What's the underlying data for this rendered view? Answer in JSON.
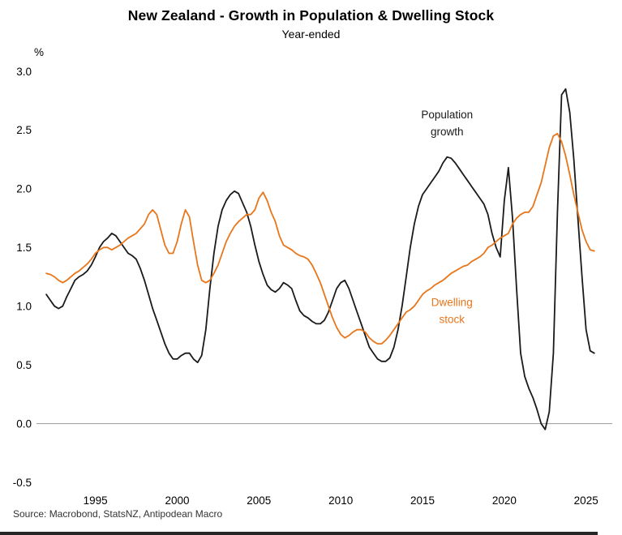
{
  "footer": {
    "source": "Source: Macrobond, StatsNZ, Antipodean Macro"
  },
  "chart_data": {
    "type": "line",
    "title": "New Zealand - Growth in Population & Dwelling Stock",
    "subtitle": "Year-ended",
    "ylabel": "%",
    "xlabel": "",
    "xlim": [
      1991.4,
      2026.6
    ],
    "ylim": [
      -0.5,
      3.0
    ],
    "yticks": [
      3.0,
      2.5,
      2.0,
      1.5,
      1.0,
      0.5,
      0.0,
      -0.5
    ],
    "xticks": [
      1995,
      2000,
      2005,
      2010,
      2015,
      2020,
      2025
    ],
    "grid": false,
    "zero_line": true,
    "zero_line_color": "#999999",
    "legend_position": "inline-annotations",
    "series": [
      {
        "id": "population-growth",
        "name": "Population growth",
        "color": "#1a1a1a",
        "x_start": 1992.0,
        "x_step": 0.25,
        "values": [
          1.1,
          1.05,
          1.0,
          0.98,
          1.0,
          1.08,
          1.15,
          1.22,
          1.25,
          1.27,
          1.3,
          1.35,
          1.42,
          1.5,
          1.55,
          1.58,
          1.62,
          1.6,
          1.55,
          1.5,
          1.45,
          1.43,
          1.4,
          1.32,
          1.22,
          1.1,
          0.98,
          0.88,
          0.78,
          0.68,
          0.6,
          0.55,
          0.55,
          0.58,
          0.6,
          0.6,
          0.55,
          0.52,
          0.58,
          0.8,
          1.15,
          1.45,
          1.68,
          1.82,
          1.9,
          1.95,
          1.98,
          1.96,
          1.88,
          1.8,
          1.68,
          1.52,
          1.38,
          1.27,
          1.18,
          1.14,
          1.12,
          1.15,
          1.2,
          1.18,
          1.15,
          1.05,
          0.96,
          0.92,
          0.9,
          0.87,
          0.85,
          0.85,
          0.88,
          0.95,
          1.05,
          1.15,
          1.2,
          1.22,
          1.15,
          1.05,
          0.95,
          0.85,
          0.75,
          0.65,
          0.6,
          0.55,
          0.53,
          0.53,
          0.56,
          0.65,
          0.8,
          1.0,
          1.25,
          1.5,
          1.7,
          1.85,
          1.95,
          2.0,
          2.05,
          2.1,
          2.15,
          2.22,
          2.27,
          2.26,
          2.22,
          2.17,
          2.12,
          2.07,
          2.02,
          1.97,
          1.92,
          1.87,
          1.78,
          1.62,
          1.5,
          1.42,
          1.9,
          2.18,
          1.75,
          1.15,
          0.6,
          0.4,
          0.3,
          0.22,
          0.12,
          0.0,
          -0.05,
          0.1,
          0.6,
          1.8,
          2.8,
          2.85,
          2.65,
          2.25,
          1.75,
          1.25,
          0.8,
          0.62,
          0.6
        ]
      },
      {
        "id": "dwelling-stock",
        "name": "Dwelling stock",
        "color": "#E8761B",
        "x_start": 1992.0,
        "x_step": 0.25,
        "values": [
          1.28,
          1.27,
          1.25,
          1.22,
          1.2,
          1.22,
          1.25,
          1.28,
          1.3,
          1.33,
          1.36,
          1.4,
          1.45,
          1.48,
          1.5,
          1.5,
          1.48,
          1.5,
          1.52,
          1.55,
          1.58,
          1.6,
          1.62,
          1.66,
          1.7,
          1.78,
          1.82,
          1.78,
          1.65,
          1.52,
          1.45,
          1.45,
          1.55,
          1.7,
          1.82,
          1.76,
          1.55,
          1.35,
          1.22,
          1.2,
          1.22,
          1.28,
          1.35,
          1.45,
          1.55,
          1.62,
          1.68,
          1.72,
          1.75,
          1.78,
          1.78,
          1.82,
          1.92,
          1.97,
          1.9,
          1.8,
          1.72,
          1.6,
          1.52,
          1.5,
          1.48,
          1.45,
          1.43,
          1.42,
          1.4,
          1.35,
          1.28,
          1.2,
          1.1,
          1.0,
          0.9,
          0.82,
          0.76,
          0.73,
          0.75,
          0.78,
          0.8,
          0.8,
          0.78,
          0.73,
          0.7,
          0.68,
          0.68,
          0.71,
          0.75,
          0.8,
          0.85,
          0.9,
          0.95,
          0.97,
          1.0,
          1.05,
          1.1,
          1.13,
          1.15,
          1.18,
          1.2,
          1.22,
          1.25,
          1.28,
          1.3,
          1.32,
          1.34,
          1.35,
          1.38,
          1.4,
          1.42,
          1.45,
          1.5,
          1.52,
          1.55,
          1.58,
          1.6,
          1.62,
          1.7,
          1.75,
          1.78,
          1.8,
          1.8,
          1.85,
          1.95,
          2.05,
          2.2,
          2.35,
          2.45,
          2.47,
          2.4,
          2.28,
          2.12,
          1.95,
          1.8,
          1.65,
          1.55,
          1.48,
          1.47
        ]
      }
    ],
    "annotations": [
      {
        "id": "population-growth",
        "lines": [
          "Population",
          "growth"
        ],
        "x": 2016.5,
        "y": 2.6,
        "color": "#1a1a1a"
      },
      {
        "id": "dwelling-stock",
        "lines": [
          "Dwelling",
          "stock"
        ],
        "x": 2016.8,
        "y": 1.0,
        "color": "#E8761B"
      }
    ]
  }
}
